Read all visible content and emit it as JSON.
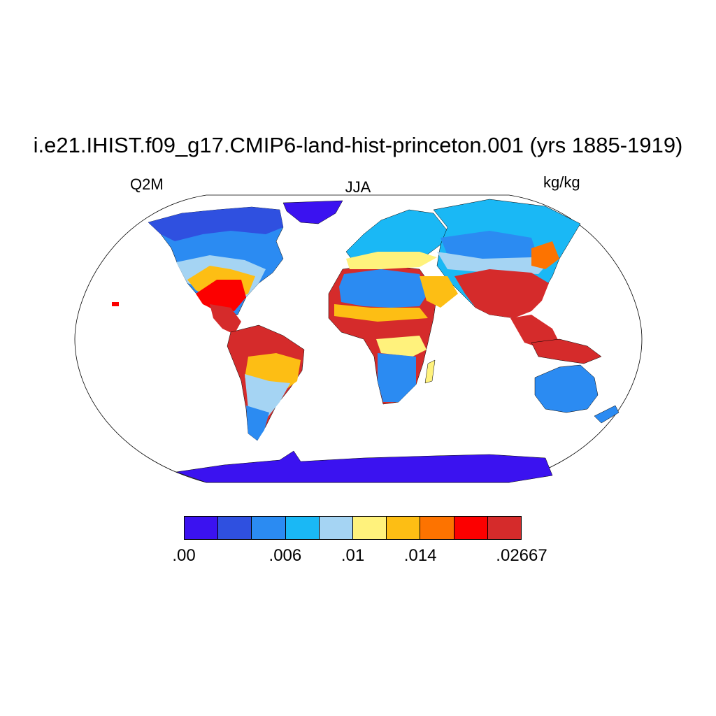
{
  "title": "i.e21.IHIST.f09_g17.CMIP6-land-hist-princeton.001 (yrs 1885-1919)",
  "variable": "Q2M",
  "season": "JJA",
  "units": "kg/kg",
  "colorbar": {
    "colors": [
      "#3b12f0",
      "#2f50e0",
      "#2b8bf2",
      "#1ab8f5",
      "#a5d4f3",
      "#fff27c",
      "#fdbe14",
      "#fd7300",
      "#fc0000",
      "#d52b2b"
    ],
    "labels": [
      ".00",
      ".006",
      ".01",
      ".014",
      ".02667"
    ]
  }
}
